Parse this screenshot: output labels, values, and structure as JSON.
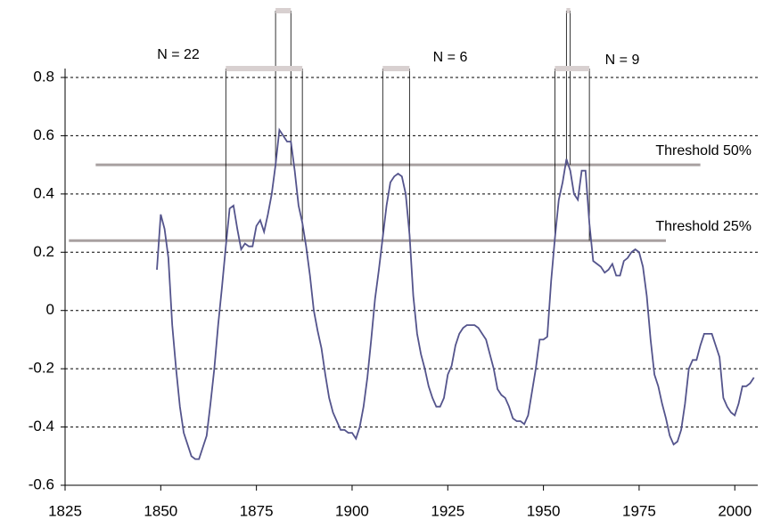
{
  "chart_data": {
    "type": "line",
    "x": [
      1849,
      1850,
      1851,
      1852,
      1853,
      1854,
      1855,
      1856,
      1857,
      1858,
      1859,
      1860,
      1861,
      1862,
      1863,
      1864,
      1865,
      1866,
      1867,
      1868,
      1869,
      1870,
      1871,
      1872,
      1873,
      1874,
      1875,
      1876,
      1877,
      1878,
      1879,
      1880,
      1881,
      1882,
      1883,
      1884,
      1885,
      1886,
      1887,
      1888,
      1889,
      1890,
      1891,
      1892,
      1893,
      1894,
      1895,
      1896,
      1897,
      1898,
      1899,
      1900,
      1901,
      1902,
      1903,
      1904,
      1905,
      1906,
      1907,
      1908,
      1909,
      1910,
      1911,
      1912,
      1913,
      1914,
      1915,
      1916,
      1917,
      1918,
      1919,
      1920,
      1921,
      1922,
      1923,
      1924,
      1925,
      1926,
      1927,
      1928,
      1929,
      1930,
      1931,
      1932,
      1933,
      1934,
      1935,
      1936,
      1937,
      1938,
      1939,
      1940,
      1941,
      1942,
      1943,
      1944,
      1945,
      1946,
      1947,
      1948,
      1949,
      1950,
      1951,
      1952,
      1953,
      1954,
      1955,
      1956,
      1957,
      1958,
      1959,
      1960,
      1961,
      1962,
      1963,
      1964,
      1965,
      1966,
      1967,
      1968,
      1969,
      1970,
      1971,
      1972,
      1973,
      1974,
      1975,
      1976,
      1977,
      1978,
      1979,
      1980,
      1981,
      1982,
      1983,
      1984,
      1985,
      1986,
      1987,
      1988,
      1989,
      1990,
      1991,
      1992,
      1993,
      1994,
      1995,
      1996,
      1997,
      1998,
      1999,
      2000,
      2001,
      2002,
      2003,
      2004,
      2005
    ],
    "series": [
      {
        "color": "#54548c",
        "values": [
          0.14,
          0.33,
          0.28,
          0.18,
          -0.05,
          -0.2,
          -0.33,
          -0.42,
          -0.46,
          -0.5,
          -0.51,
          -0.51,
          -0.47,
          -0.43,
          -0.32,
          -0.2,
          -0.05,
          0.08,
          0.22,
          0.35,
          0.36,
          0.28,
          0.21,
          0.23,
          0.22,
          0.22,
          0.29,
          0.31,
          0.27,
          0.33,
          0.4,
          0.5,
          0.62,
          0.6,
          0.58,
          0.58,
          0.48,
          0.36,
          0.3,
          0.22,
          0.12,
          0.0,
          -0.07,
          -0.13,
          -0.22,
          -0.3,
          -0.35,
          -0.38,
          -0.41,
          -0.41,
          -0.42,
          -0.42,
          -0.44,
          -0.4,
          -0.33,
          -0.23,
          -0.1,
          0.04,
          0.14,
          0.25,
          0.36,
          0.44,
          0.46,
          0.47,
          0.46,
          0.4,
          0.26,
          0.05,
          -0.08,
          -0.15,
          -0.2,
          -0.26,
          -0.3,
          -0.33,
          -0.33,
          -0.3,
          -0.22,
          -0.19,
          -0.12,
          -0.08,
          -0.06,
          -0.05,
          -0.05,
          -0.05,
          -0.06,
          -0.08,
          -0.1,
          -0.15,
          -0.2,
          -0.27,
          -0.29,
          -0.3,
          -0.33,
          -0.37,
          -0.38,
          -0.38,
          -0.39,
          -0.36,
          -0.28,
          -0.2,
          -0.1,
          -0.1,
          -0.09,
          0.1,
          0.25,
          0.38,
          0.44,
          0.52,
          0.48,
          0.4,
          0.38,
          0.48,
          0.48,
          0.3,
          0.17,
          0.16,
          0.15,
          0.13,
          0.14,
          0.16,
          0.12,
          0.12,
          0.17,
          0.18,
          0.2,
          0.21,
          0.2,
          0.15,
          0.05,
          -0.1,
          -0.22,
          -0.26,
          -0.32,
          -0.37,
          -0.43,
          -0.46,
          -0.45,
          -0.41,
          -0.32,
          -0.2,
          -0.17,
          -0.17,
          -0.12,
          -0.08,
          -0.08,
          -0.08,
          -0.12,
          -0.16,
          -0.3,
          -0.33,
          -0.35,
          -0.36,
          -0.32,
          -0.26,
          -0.26,
          -0.25,
          -0.23
        ]
      }
    ],
    "xlim": [
      1825,
      2006
    ],
    "xticks": [
      1825,
      1850,
      1875,
      1900,
      1925,
      1950,
      1975,
      2000
    ],
    "ylim": [
      -0.6,
      0.8
    ],
    "yticks": [
      -0.6,
      -0.4,
      -0.2,
      0,
      0.2,
      0.4,
      0.6,
      0.8
    ],
    "grid": true,
    "thresholds": [
      {
        "label": "Threshold 50%",
        "value": 0.5,
        "from": 1833,
        "to": 1991,
        "color": "#a8a0a0",
        "periods": [
          [
            1880,
            1884
          ],
          [
            1956,
            1957
          ]
        ]
      },
      {
        "label": "Threshold 25%",
        "value": 0.24,
        "from": 1826,
        "to": 1982,
        "color": "#a8a0a0",
        "periods": [
          [
            1867,
            1887
          ],
          [
            1908,
            1915
          ],
          [
            1953,
            1962
          ]
        ]
      }
    ],
    "annotations": [
      "N = 22",
      "N = 6",
      "N = 9"
    ]
  }
}
